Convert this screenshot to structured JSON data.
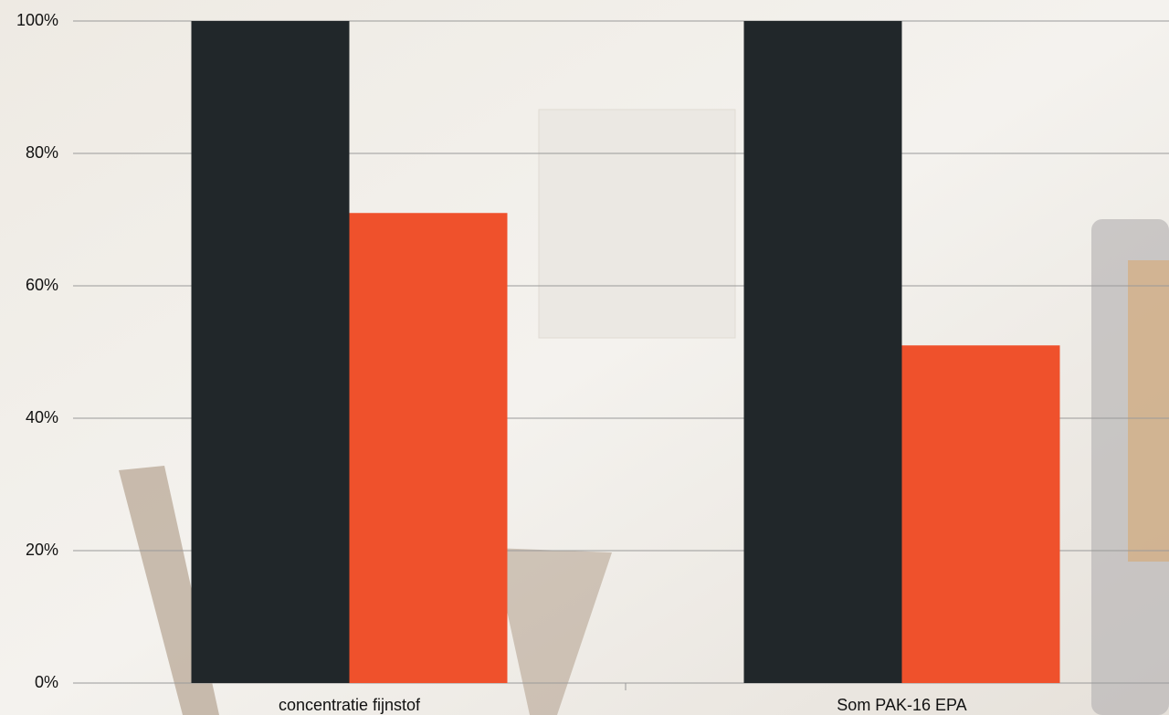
{
  "chart_data": {
    "type": "bar",
    "categories": [
      "concentratie fijnstof",
      "Som PAK-16 EPA"
    ],
    "series": [
      {
        "color": "#21272a",
        "values": [
          100,
          100
        ]
      },
      {
        "color": "#ef512c",
        "values": [
          71,
          51
        ]
      }
    ],
    "ylim": [
      0,
      100
    ],
    "yticks": [
      {
        "value": 0,
        "label": "0%"
      },
      {
        "value": 20,
        "label": "20%"
      },
      {
        "value": 40,
        "label": "40%"
      },
      {
        "value": 60,
        "label": "60%"
      },
      {
        "value": 80,
        "label": "80%"
      },
      {
        "value": 100,
        "label": "100%"
      }
    ],
    "grid": true
  }
}
